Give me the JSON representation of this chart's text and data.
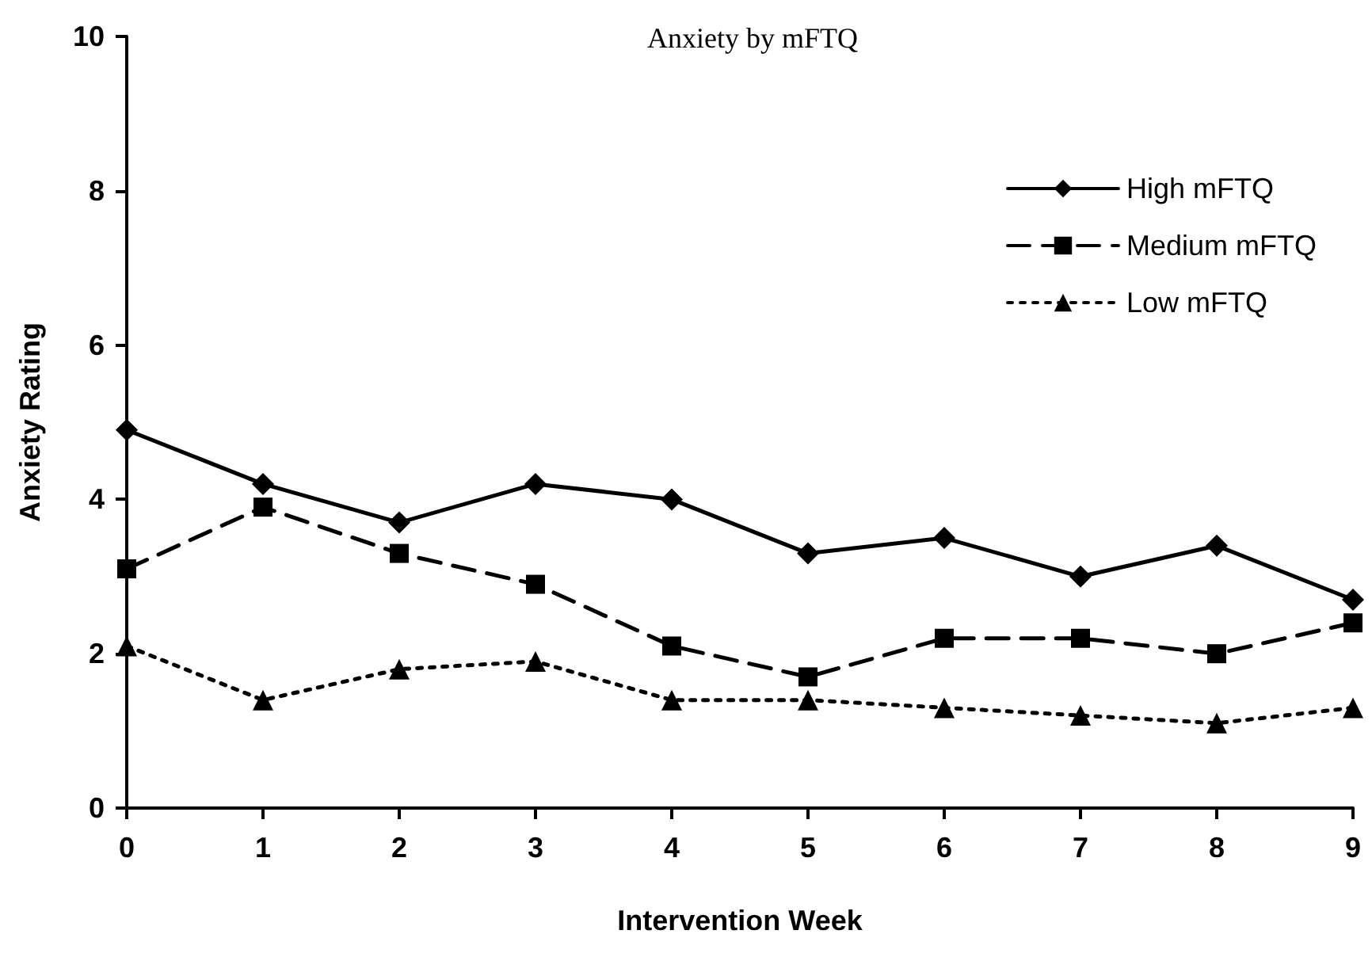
{
  "chart_data": {
    "type": "line",
    "title": "Anxiety by mFTQ",
    "xlabel": "Intervention Week",
    "ylabel": "Anxiety Rating",
    "x": [
      0,
      1,
      2,
      3,
      4,
      5,
      6,
      7,
      8,
      9
    ],
    "xlim": [
      0,
      9
    ],
    "xticks": [
      0,
      1,
      2,
      3,
      4,
      5,
      6,
      7,
      8,
      9
    ],
    "ylim": [
      0,
      10
    ],
    "yticks": [
      0,
      2,
      4,
      6,
      8,
      10
    ],
    "grid": false,
    "legend": "top right",
    "series": [
      {
        "name": "High mFTQ",
        "color": "#000000",
        "marker": "diamond",
        "line_style": "solid",
        "values": [
          4.9,
          4.2,
          3.7,
          4.2,
          4.0,
          3.3,
          3.5,
          3.0,
          3.4,
          2.7
        ]
      },
      {
        "name": "Medium mFTQ",
        "color": "#000000",
        "marker": "square",
        "line_style": "dashed",
        "values": [
          3.1,
          3.9,
          3.3,
          2.9,
          2.1,
          1.7,
          2.2,
          2.2,
          2.0,
          2.4
        ]
      },
      {
        "name": "Low mFTQ",
        "color": "#000000",
        "marker": "triangle",
        "line_style": "dotted",
        "values": [
          2.1,
          1.4,
          1.8,
          1.9,
          1.4,
          1.4,
          1.3,
          1.2,
          1.1,
          1.3
        ]
      }
    ]
  }
}
